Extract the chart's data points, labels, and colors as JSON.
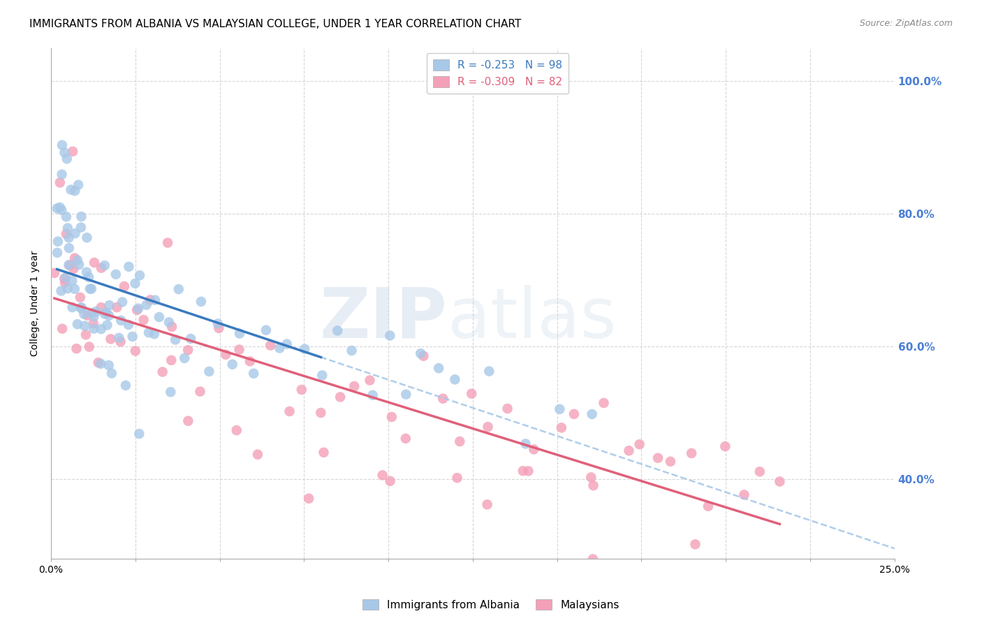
{
  "title": "IMMIGRANTS FROM ALBANIA VS MALAYSIAN COLLEGE, UNDER 1 YEAR CORRELATION CHART",
  "source": "Source: ZipAtlas.com",
  "ylabel": "College, Under 1 year",
  "legend_albania": "R = -0.253   N = 98",
  "legend_malaysia": "R = -0.309   N = 82",
  "albania_color": "#a8c8e8",
  "malaysia_color": "#f4a0b8",
  "albania_line_color": "#3a7abf",
  "malaysia_line_color": "#e0607a",
  "albania_dash_color": "#a8c8e8",
  "watermark_zip": "ZIP",
  "watermark_atlas": "atlas",
  "title_fontsize": 11,
  "axis_label_fontsize": 10,
  "tick_fontsize": 10,
  "right_tick_color": "#4a7fd4",
  "xlim": [
    0.0,
    0.25
  ],
  "ylim": [
    0.28,
    1.05
  ],
  "grid_color": "#cccccc",
  "background_color": "#ffffff",
  "albania_x": [
    0.001,
    0.002,
    0.002,
    0.003,
    0.003,
    0.003,
    0.004,
    0.004,
    0.004,
    0.004,
    0.005,
    0.005,
    0.005,
    0.005,
    0.006,
    0.006,
    0.006,
    0.007,
    0.007,
    0.007,
    0.007,
    0.008,
    0.008,
    0.008,
    0.009,
    0.009,
    0.009,
    0.01,
    0.01,
    0.01,
    0.011,
    0.011,
    0.012,
    0.012,
    0.013,
    0.013,
    0.014,
    0.014,
    0.015,
    0.015,
    0.016,
    0.016,
    0.017,
    0.017,
    0.018,
    0.018,
    0.019,
    0.02,
    0.02,
    0.021,
    0.022,
    0.022,
    0.023,
    0.024,
    0.025,
    0.026,
    0.027,
    0.028,
    0.029,
    0.03,
    0.031,
    0.033,
    0.035,
    0.036,
    0.038,
    0.04,
    0.042,
    0.045,
    0.047,
    0.05,
    0.053,
    0.056,
    0.06,
    0.063,
    0.067,
    0.07,
    0.075,
    0.08,
    0.085,
    0.09,
    0.095,
    0.1,
    0.105,
    0.11,
    0.115,
    0.12,
    0.13,
    0.14,
    0.15,
    0.16,
    0.003,
    0.005,
    0.007,
    0.01,
    0.013,
    0.018,
    0.025,
    0.035
  ],
  "albania_y": [
    0.75,
    0.82,
    0.78,
    0.85,
    0.8,
    0.72,
    0.88,
    0.82,
    0.76,
    0.7,
    0.84,
    0.79,
    0.73,
    0.68,
    0.81,
    0.75,
    0.69,
    0.83,
    0.77,
    0.71,
    0.65,
    0.8,
    0.74,
    0.68,
    0.78,
    0.72,
    0.66,
    0.76,
    0.7,
    0.64,
    0.74,
    0.68,
    0.72,
    0.66,
    0.7,
    0.64,
    0.68,
    0.62,
    0.72,
    0.66,
    0.7,
    0.64,
    0.68,
    0.62,
    0.66,
    0.6,
    0.74,
    0.68,
    0.62,
    0.66,
    0.64,
    0.58,
    0.72,
    0.66,
    0.7,
    0.64,
    0.68,
    0.62,
    0.66,
    0.6,
    0.64,
    0.62,
    0.66,
    0.6,
    0.64,
    0.62,
    0.6,
    0.64,
    0.58,
    0.62,
    0.6,
    0.64,
    0.58,
    0.62,
    0.6,
    0.58,
    0.62,
    0.56,
    0.6,
    0.58,
    0.56,
    0.6,
    0.54,
    0.58,
    0.56,
    0.52,
    0.56,
    0.5,
    0.54,
    0.48,
    0.91,
    0.72,
    0.68,
    0.65,
    0.6,
    0.58,
    0.52,
    0.48
  ],
  "malaysia_x": [
    0.001,
    0.002,
    0.003,
    0.004,
    0.005,
    0.006,
    0.007,
    0.008,
    0.009,
    0.01,
    0.011,
    0.012,
    0.013,
    0.015,
    0.016,
    0.018,
    0.02,
    0.022,
    0.025,
    0.028,
    0.03,
    0.033,
    0.036,
    0.04,
    0.044,
    0.048,
    0.052,
    0.056,
    0.06,
    0.065,
    0.07,
    0.075,
    0.08,
    0.085,
    0.09,
    0.095,
    0.1,
    0.105,
    0.11,
    0.115,
    0.12,
    0.125,
    0.13,
    0.135,
    0.14,
    0.145,
    0.15,
    0.155,
    0.16,
    0.165,
    0.17,
    0.175,
    0.18,
    0.185,
    0.19,
    0.195,
    0.2,
    0.205,
    0.21,
    0.215,
    0.008,
    0.015,
    0.025,
    0.04,
    0.06,
    0.08,
    0.1,
    0.12,
    0.14,
    0.16,
    0.005,
    0.01,
    0.02,
    0.035,
    0.055,
    0.075,
    0.1,
    0.13,
    0.16,
    0.19,
    0.007,
    0.035
  ],
  "malaysia_y": [
    0.78,
    0.82,
    0.72,
    0.76,
    0.68,
    0.74,
    0.7,
    0.72,
    0.66,
    0.68,
    0.64,
    0.7,
    0.62,
    0.66,
    0.68,
    0.64,
    0.62,
    0.66,
    0.6,
    0.64,
    0.62,
    0.58,
    0.62,
    0.6,
    0.58,
    0.62,
    0.56,
    0.6,
    0.58,
    0.56,
    0.54,
    0.58,
    0.52,
    0.56,
    0.5,
    0.54,
    0.52,
    0.48,
    0.5,
    0.54,
    0.48,
    0.52,
    0.46,
    0.5,
    0.44,
    0.48,
    0.46,
    0.5,
    0.44,
    0.48,
    0.42,
    0.46,
    0.44,
    0.42,
    0.46,
    0.4,
    0.44,
    0.42,
    0.4,
    0.44,
    0.6,
    0.58,
    0.54,
    0.52,
    0.48,
    0.46,
    0.44,
    0.42,
    0.4,
    0.38,
    0.72,
    0.64,
    0.58,
    0.52,
    0.48,
    0.44,
    0.4,
    0.36,
    0.32,
    0.3,
    0.9,
    0.78
  ]
}
